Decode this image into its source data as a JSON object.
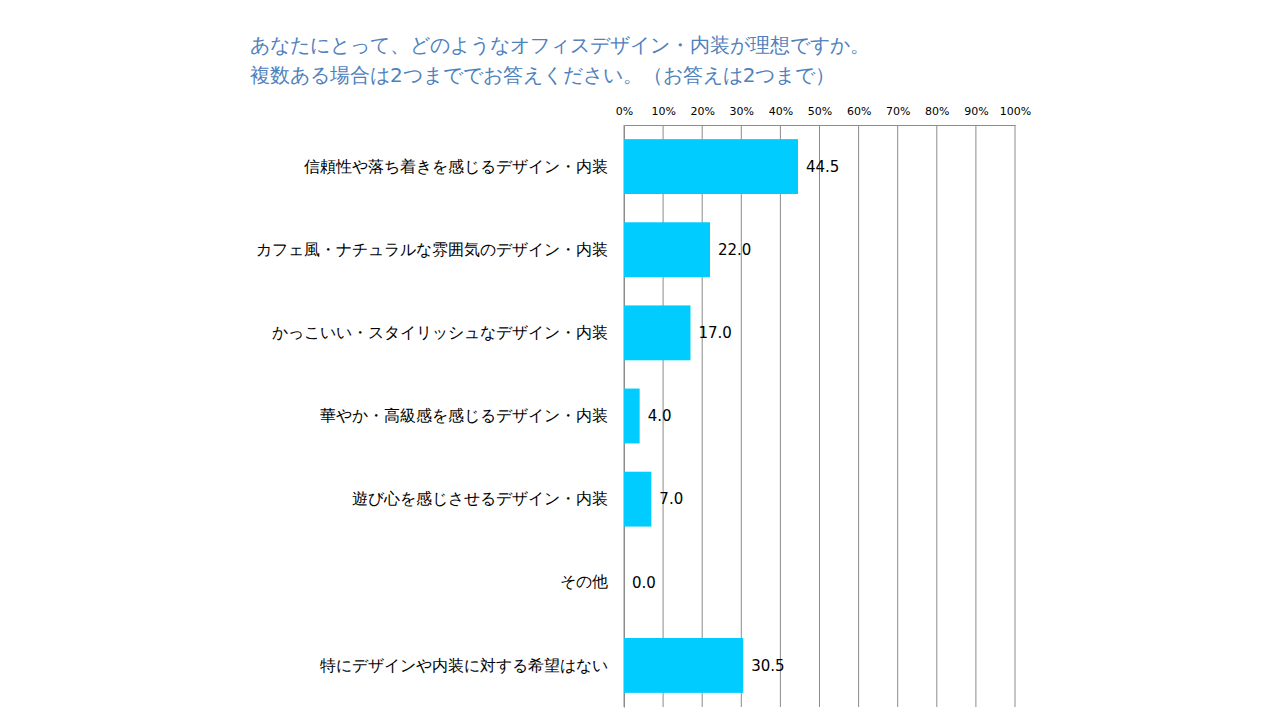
{
  "chart_data": {
    "type": "bar",
    "orientation": "horizontal",
    "title": "あなたにとって、どのようなオフィスデザイン・内装が理想ですか。",
    "subtitle": "複数ある場合は2つまででお答えください。（お答えは2つまで）",
    "categories": [
      "信頼性や落ち着きを感じるデザイン・内装",
      "カフェ風・ナチュラルな雰囲気のデザイン・内装",
      "かっこいい・スタイリッシュなデザイン・内装",
      "華やか・高級感を感じるデザイン・内装",
      "遊び心を感じさせるデザイン・内装",
      "その他",
      "特にデザインや内装に対する希望はない"
    ],
    "values": [
      44.5,
      22,
      17,
      4,
      7,
      0,
      30.5
    ],
    "value_labels": [
      "44.5",
      "22.0",
      "17.0",
      "4.0",
      "7.0",
      "0.0",
      "30.5"
    ],
    "data_labels": true,
    "color": "#00ccff",
    "xlim": [
      0,
      100
    ],
    "xticks": [
      {
        "value": 0,
        "label": "0%"
      },
      {
        "value": 10,
        "label": "10%"
      },
      {
        "value": 20,
        "label": "20%"
      },
      {
        "value": 30,
        "label": "30%"
      },
      {
        "value": 40,
        "label": "40%"
      },
      {
        "value": 50,
        "label": "50%"
      },
      {
        "value": 60,
        "label": "60%"
      },
      {
        "value": 70,
        "label": "70%"
      },
      {
        "value": 80,
        "label": "80%"
      },
      {
        "value": 90,
        "label": "90%"
      },
      {
        "value": 100,
        "label": "100%"
      }
    ],
    "grid": true
  }
}
